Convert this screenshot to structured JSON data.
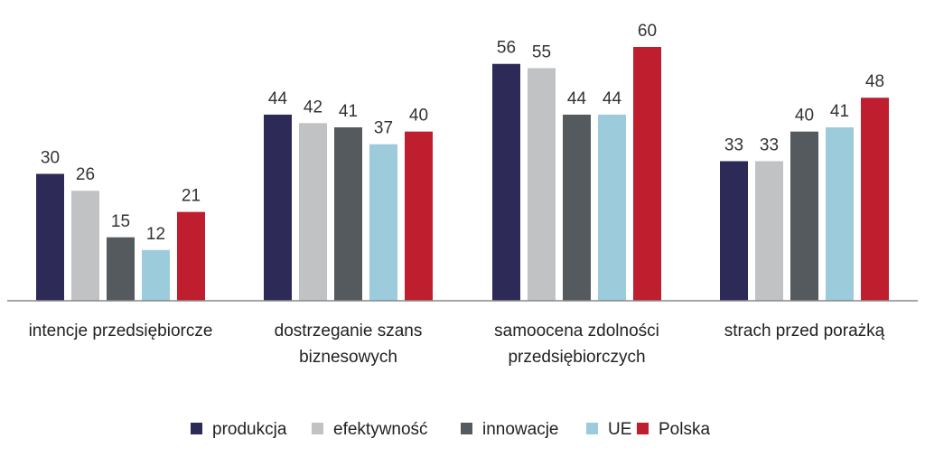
{
  "chart_data": {
    "type": "bar",
    "categories": [
      [
        "intencje przedsiębiorcze"
      ],
      [
        "dostrzeganie szans",
        "biznesowych"
      ],
      [
        "samoocena zdolności",
        "przedsiębiorczych"
      ],
      [
        "strach przed porażką"
      ]
    ],
    "series": [
      {
        "name": "produkcja",
        "color": "#2e2a58",
        "values": [
          30,
          44,
          56,
          33
        ]
      },
      {
        "name": "efektywność",
        "color": "#c0c2c4",
        "values": [
          26,
          42,
          55,
          33
        ]
      },
      {
        "name": "innowacje",
        "color": "#555a5f",
        "values": [
          15,
          41,
          44,
          40
        ]
      },
      {
        "name": "UE",
        "color": "#9ccbdc",
        "values": [
          12,
          37,
          44,
          41
        ]
      },
      {
        "name": "Polska",
        "color": "#be1e2d",
        "values": [
          21,
          40,
          60,
          48
        ]
      }
    ],
    "ylim": [
      0,
      60
    ],
    "grid": false,
    "legend_position": "bottom",
    "data_labels": true
  }
}
